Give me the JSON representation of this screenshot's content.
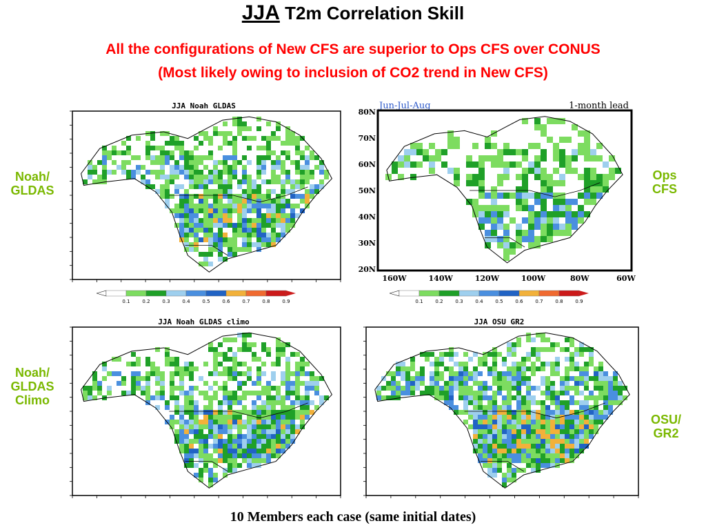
{
  "title": {
    "prefix": "JJA",
    "rest": " T2m Correlation Skill"
  },
  "subtitle": {
    "line1": "All the configurations of New CFS are superior to Ops CFS over CONUS",
    "line2": "(Most likely owing to inclusion of CO2 trend in New CFS)"
  },
  "labels": {
    "noah_gldas": [
      "Noah/",
      "GLDAS"
    ],
    "ops_cfs": [
      "Ops",
      "CFS"
    ],
    "noah_gldas_climo": [
      "Noah/",
      "GLDAS",
      "Climo"
    ],
    "osu_gr2": [
      "OSU/",
      "GR2"
    ]
  },
  "panels": {
    "p1": {
      "title": "JJA Noah GLDAS"
    },
    "p2": {
      "left_title": "Jun-Jul-Aug",
      "right_title": "1-month lead",
      "lat_ticks": [
        "80N",
        "70N",
        "60N",
        "50N",
        "40N",
        "30N",
        "20N"
      ],
      "lon_ticks": [
        "160W",
        "140W",
        "120W",
        "100W",
        "80W",
        "60W"
      ]
    },
    "p3": {
      "title": "JJA Noah GLDAS climo"
    },
    "p4": {
      "title": "JJA OSU GR2"
    }
  },
  "colorbar": {
    "ticks": [
      "0.1",
      "0.2",
      "0.3",
      "0.4",
      "0.5",
      "0.6",
      "0.7",
      "0.8",
      "0.9"
    ],
    "colors": [
      "#ffffff",
      "#7ddc60",
      "#1fa028",
      "#9ecfee",
      "#4a8fdf",
      "#2163c4",
      "#f2b13a",
      "#f06a30",
      "#cc1a1a"
    ]
  },
  "footer": "10 Members each case (same initial dates)",
  "colors": {
    "title_red": "#ff0000",
    "label_green": "#7ab800"
  }
}
